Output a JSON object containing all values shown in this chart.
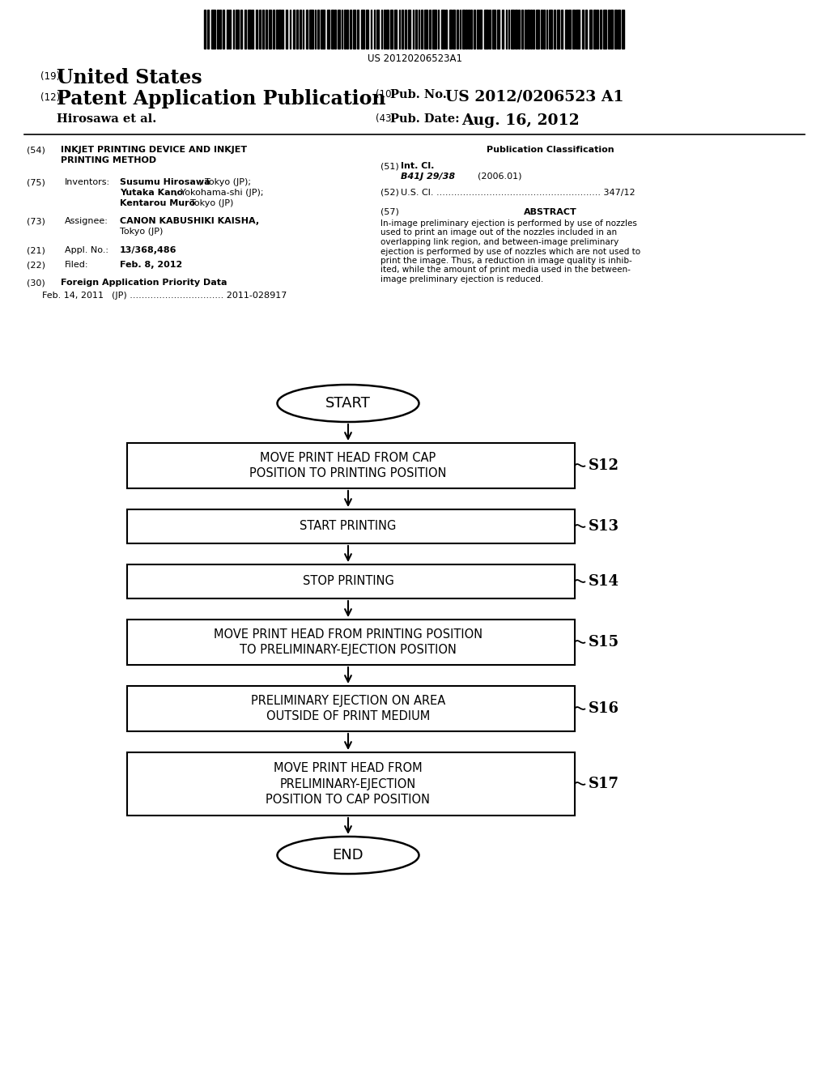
{
  "background_color": "#ffffff",
  "barcode_text": "US 20120206523A1",
  "header": {
    "line1_num": "(19)",
    "line1_text": "United States",
    "line2_num": "(12)",
    "line2_text": "Patent Application Publication",
    "line3_right1_num": "(10)",
    "line3_right1_text": "Pub. No.:",
    "line3_right1_val": "US 2012/0206523 A1",
    "line4_left": "Hirosawa et al.",
    "line4_right_num": "(43)",
    "line4_right_text": "Pub. Date:",
    "line4_right_val": "Aug. 16, 2012"
  },
  "flowchart": {
    "start_text": "START",
    "end_text": "END",
    "steps": [
      {
        "id": "S12",
        "text": "MOVE PRINT HEAD FROM CAP\nPOSITION TO PRINTING POSITION",
        "lines": 2
      },
      {
        "id": "S13",
        "text": "START PRINTING",
        "lines": 1
      },
      {
        "id": "S14",
        "text": "STOP PRINTING",
        "lines": 1
      },
      {
        "id": "S15",
        "text": "MOVE PRINT HEAD FROM PRINTING POSITION\nTO PRELIMINARY-EJECTION POSITION",
        "lines": 2
      },
      {
        "id": "S16",
        "text": "PRELIMINARY EJECTION ON AREA\nOUTSIDE OF PRINT MEDIUM",
        "lines": 2
      },
      {
        "id": "S17",
        "text": "MOVE PRINT HEAD FROM\nPRELIMINARY-EJECTION\nPOSITION TO CAP POSITION",
        "lines": 3
      }
    ]
  },
  "abstract_lines": [
    "In-image preliminary ejection is performed by use of nozzles",
    "used to print an image out of the nozzles included in an",
    "overlapping link region, and between-image preliminary",
    "ejection is performed by use of nozzles which are not used to",
    "print the image. Thus, a reduction in image quality is inhib-",
    "ited, while the amount of print media used in the between-",
    "image preliminary ejection is reduced."
  ]
}
